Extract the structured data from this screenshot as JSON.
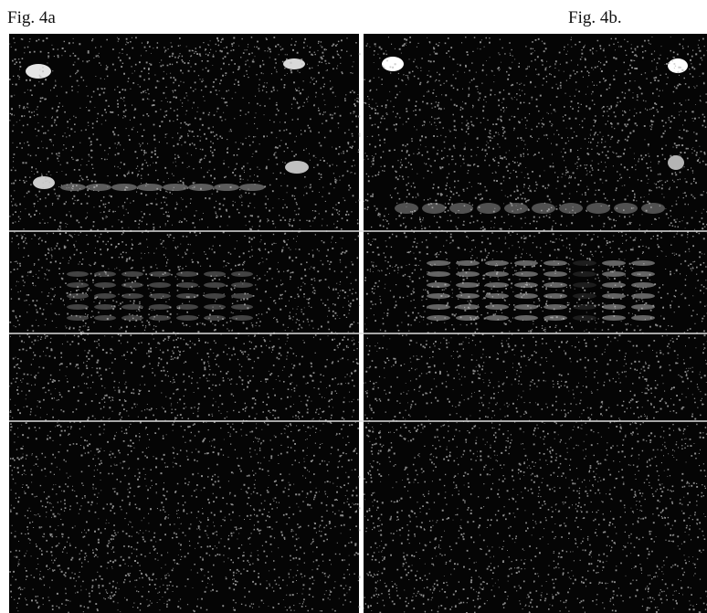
{
  "figures": [
    {
      "label": "Fig. 4a"
    },
    {
      "label": "Fig. 4b."
    }
  ]
}
